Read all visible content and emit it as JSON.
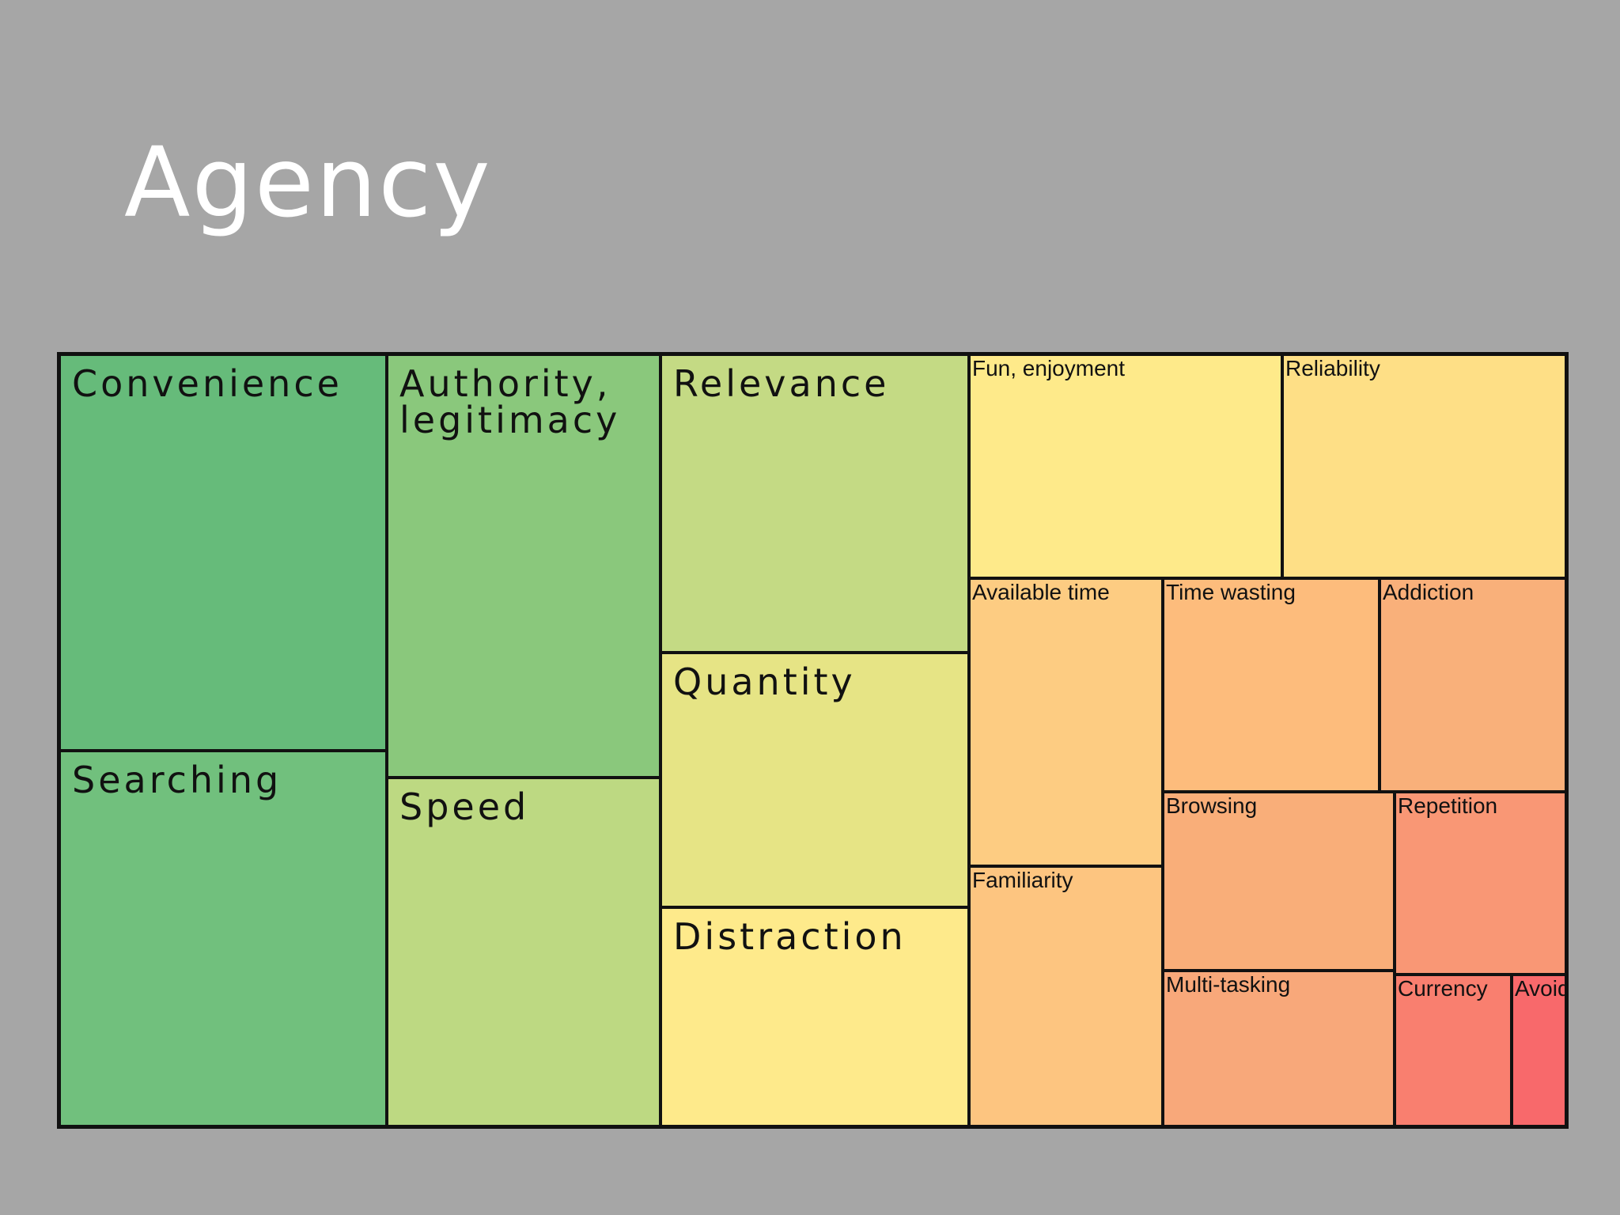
{
  "slide": {
    "title": "Agency"
  },
  "chart_data": {
    "type": "treemap",
    "title": "Agency",
    "items": [
      {
        "name": "Convenience",
        "color": "#66bb7a"
      },
      {
        "name": "Searching",
        "color": "#71c07d"
      },
      {
        "name": "Authority,\nlegitimacy",
        "color": "#8ac87c"
      },
      {
        "name": "Speed",
        "color": "#bdd982"
      },
      {
        "name": "Relevance",
        "color": "#c4da84"
      },
      {
        "name": "Quantity",
        "color": "#e6e485"
      },
      {
        "name": "Distraction",
        "color": "#feea8b"
      },
      {
        "name": "Fun, enjoyment",
        "color": "#feea8a"
      },
      {
        "name": "Reliability",
        "color": "#fedf86"
      },
      {
        "name": "Available time",
        "color": "#fdcc82"
      },
      {
        "name": "Familiarity",
        "color": "#fdc580"
      },
      {
        "name": "Time wasting",
        "color": "#fdbc7c"
      },
      {
        "name": "Addiction",
        "color": "#f9b07a"
      },
      {
        "name": "Browsing",
        "color": "#f9ae79"
      },
      {
        "name": "Multi-tasking",
        "color": "#f8a87a"
      },
      {
        "name": "Repetition",
        "color": "#f99775"
      },
      {
        "name": "Currency",
        "color": "#f97f6f"
      },
      {
        "name": "Avoid",
        "color": "#f8696b"
      }
    ]
  }
}
